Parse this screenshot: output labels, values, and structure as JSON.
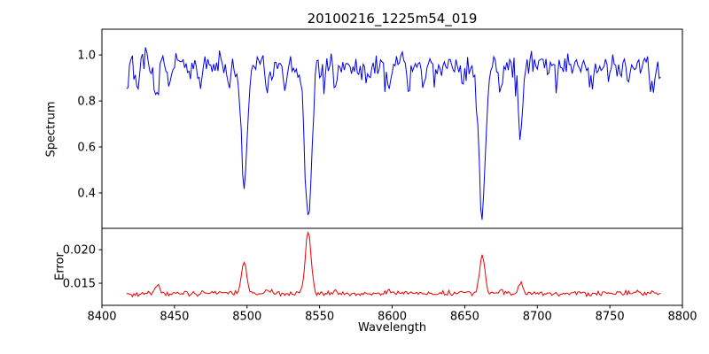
{
  "chart_data": {
    "type": "line",
    "title": "20100216_1225m54_019",
    "xlabel": "Wavelength",
    "x_range": [
      8400,
      8800
    ],
    "x_data_range": [
      8417,
      8785
    ],
    "x_ticks": [
      8400,
      8450,
      8500,
      8550,
      8600,
      8650,
      8700,
      8750,
      8800
    ],
    "x_tick_labels": [
      "8400",
      "8450",
      "8500",
      "8550",
      "8600",
      "8650",
      "8700",
      "8750",
      "8800"
    ],
    "grid": false,
    "legend": false,
    "panels": [
      {
        "name": "spectrum",
        "ylabel": "Spectrum",
        "color": "#0000ee",
        "y_ticks": [
          0.4,
          0.6,
          0.8,
          1.0
        ],
        "y_tick_labels": [
          "0.4",
          "0.6",
          "0.8",
          "1.0"
        ],
        "ylim": [
          0.246,
          1.112
        ],
        "continuum": 0.955,
        "noise_sigma": 0.027,
        "absorption_lines": [
          {
            "center": 8424.0,
            "depth": 0.1,
            "sigma": 1.0
          },
          {
            "center": 8438.0,
            "depth": 0.14,
            "sigma": 1.3
          },
          {
            "center": 8446.5,
            "depth": 0.08,
            "sigma": 0.9
          },
          {
            "center": 8468.0,
            "depth": 0.09,
            "sigma": 1.0
          },
          {
            "center": 8488.0,
            "depth": 0.11,
            "sigma": 1.0
          },
          {
            "center": 8498.0,
            "depth": 0.53,
            "sigma": 2.0
          },
          {
            "center": 8514.0,
            "depth": 0.11,
            "sigma": 1.0
          },
          {
            "center": 8526.0,
            "depth": 0.08,
            "sigma": 0.9
          },
          {
            "center": 8542.1,
            "depth": 0.66,
            "sigma": 2.4
          },
          {
            "center": 8560.8,
            "depth": 0.1,
            "sigma": 1.0
          },
          {
            "center": 8582.0,
            "depth": 0.08,
            "sigma": 0.9
          },
          {
            "center": 8598.0,
            "depth": 0.1,
            "sigma": 1.0
          },
          {
            "center": 8611.0,
            "depth": 0.08,
            "sigma": 0.9
          },
          {
            "center": 8621.0,
            "depth": 0.07,
            "sigma": 0.9
          },
          {
            "center": 8648.5,
            "depth": 0.1,
            "sigma": 1.0
          },
          {
            "center": 8662.1,
            "depth": 0.65,
            "sigma": 2.2
          },
          {
            "center": 8674.8,
            "depth": 0.12,
            "sigma": 1.0
          },
          {
            "center": 8688.6,
            "depth": 0.29,
            "sigma": 1.5
          },
          {
            "center": 8713.0,
            "depth": 0.08,
            "sigma": 0.9
          },
          {
            "center": 8736.0,
            "depth": 0.07,
            "sigma": 0.9
          },
          {
            "center": 8763.0,
            "depth": 0.09,
            "sigma": 1.0
          },
          {
            "center": 8780.0,
            "depth": 0.11,
            "sigma": 1.0
          }
        ]
      },
      {
        "name": "error",
        "ylabel": "Error",
        "color": "#ee0000",
        "y_ticks": [
          0.015,
          0.02
        ],
        "y_tick_labels": [
          "0.015",
          "0.020"
        ],
        "ylim": [
          0.0117,
          0.0232
        ],
        "baseline": 0.01345,
        "noise_sigma": 0.00018,
        "peaks": [
          {
            "center": 8438.0,
            "amp": 0.0009,
            "sigma": 1.3
          },
          {
            "center": 8498.0,
            "amp": 0.0048,
            "sigma": 1.8
          },
          {
            "center": 8514.0,
            "amp": 0.0005,
            "sigma": 1.0
          },
          {
            "center": 8542.1,
            "amp": 0.0091,
            "sigma": 2.0
          },
          {
            "center": 8560.8,
            "amp": 0.0005,
            "sigma": 1.0
          },
          {
            "center": 8598.0,
            "amp": 0.0004,
            "sigma": 1.0
          },
          {
            "center": 8648.5,
            "amp": 0.0004,
            "sigma": 1.0
          },
          {
            "center": 8662.1,
            "amp": 0.0057,
            "sigma": 1.8
          },
          {
            "center": 8674.8,
            "amp": 0.0006,
            "sigma": 1.0
          },
          {
            "center": 8688.6,
            "amp": 0.0018,
            "sigma": 1.2
          },
          {
            "center": 8763.0,
            "amp": 0.0004,
            "sigma": 1.0
          },
          {
            "center": 8780.0,
            "amp": 0.0005,
            "sigma": 1.0
          }
        ]
      }
    ],
    "key_points": {
      "continuum_level": 0.955,
      "error_baseline": 0.0134,
      "spectrum_minima": [
        {
          "wavelength": 8498,
          "flux": 0.43
        },
        {
          "wavelength": 8542,
          "flux": 0.3
        },
        {
          "wavelength": 8662,
          "flux": 0.31
        },
        {
          "wavelength": 8689,
          "flux": 0.69
        }
      ],
      "error_peaks": [
        {
          "wavelength": 8498,
          "error": 0.0183
        },
        {
          "wavelength": 8542,
          "error": 0.0226
        },
        {
          "wavelength": 8662,
          "error": 0.0192
        },
        {
          "wavelength": 8689,
          "error": 0.0153
        }
      ]
    }
  }
}
